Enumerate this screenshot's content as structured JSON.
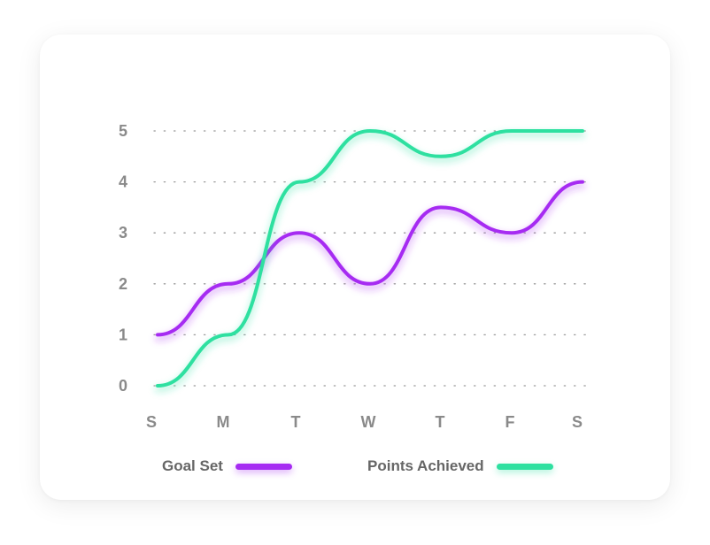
{
  "chart_data": {
    "type": "line",
    "title": "",
    "xlabel": "",
    "ylabel": "",
    "categories": [
      "S",
      "M",
      "T",
      "W",
      "T",
      "F",
      "S"
    ],
    "y_ticks": [
      "0",
      "1",
      "2",
      "3",
      "4",
      "5"
    ],
    "ylim": [
      0,
      5
    ],
    "grid": "dotted horizontal",
    "legend_placement": "bottom",
    "series": [
      {
        "name": "Goal Set",
        "color": "#a62bf2",
        "values": [
          1,
          2,
          3,
          2,
          3.5,
          3,
          4
        ]
      },
      {
        "name": "Points Achieved",
        "color": "#2ee0a0",
        "values": [
          0,
          1,
          4,
          5,
          4.5,
          5,
          5
        ]
      }
    ]
  }
}
